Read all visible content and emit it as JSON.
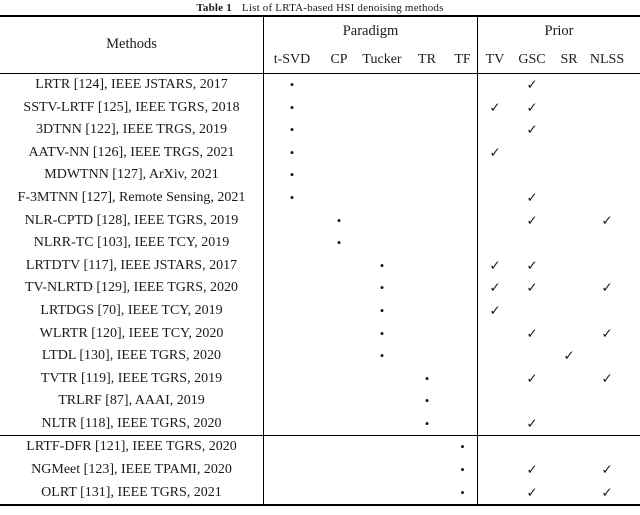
{
  "title": {
    "label": "Table 1",
    "caption": "List of LRTA-based HSI denoising methods"
  },
  "columns": {
    "methods": "Methods",
    "paradigm": {
      "label": "Paradigm",
      "cols": [
        "t-SVD",
        "CP",
        "Tucker",
        "TR",
        "TF"
      ]
    },
    "prior": {
      "label": "Prior",
      "cols": [
        "TV",
        "GSC",
        "SR",
        "NLSS"
      ]
    }
  },
  "symbols": {
    "paradigm_mark": "•",
    "prior_mark": "✓"
  },
  "sections": [
    {
      "rows": [
        {
          "method": "LRTR [124], IEEE JSTARS, 2017",
          "marks": [
            "•",
            "",
            "",
            "",
            "",
            "",
            "✓",
            "",
            ""
          ]
        },
        {
          "method": "SSTV-LRTF [125], IEEE TGRS, 2018",
          "marks": [
            "•",
            "",
            "",
            "",
            "",
            "✓",
            "✓",
            "",
            ""
          ]
        },
        {
          "method": "3DTNN [122], IEEE TRGS, 2019",
          "marks": [
            "•",
            "",
            "",
            "",
            "",
            "",
            "✓",
            "",
            ""
          ]
        },
        {
          "method": "AATV-NN [126], IEEE TRGS, 2021",
          "marks": [
            "•",
            "",
            "",
            "",
            "",
            "✓",
            "",
            "",
            ""
          ]
        },
        {
          "method": "MDWTNN [127], ArXiv, 2021",
          "marks": [
            "•",
            "",
            "",
            "",
            "",
            "",
            "",
            "",
            ""
          ]
        },
        {
          "method": "F-3MTNN [127], Remote Sensing, 2021",
          "marks": [
            "•",
            "",
            "",
            "",
            "",
            "",
            "✓",
            "",
            ""
          ]
        },
        {
          "method": "NLR-CPTD [128], IEEE TGRS, 2019",
          "marks": [
            "",
            "•",
            "",
            "",
            "",
            "",
            "✓",
            "",
            "✓"
          ]
        },
        {
          "method": "NLRR-TC [103], IEEE TCY, 2019",
          "marks": [
            "",
            "•",
            "",
            "",
            "",
            "",
            "",
            "",
            ""
          ]
        },
        {
          "method": "LRTDTV [117], IEEE JSTARS, 2017",
          "marks": [
            "",
            "",
            "•",
            "",
            "",
            "✓",
            "✓",
            "",
            ""
          ]
        },
        {
          "method": "TV-NLRTD [129], IEEE TGRS, 2020",
          "marks": [
            "",
            "",
            "•",
            "",
            "",
            "✓",
            "✓",
            "",
            "✓"
          ]
        },
        {
          "method": "LRTDGS [70], IEEE TCY, 2019",
          "marks": [
            "",
            "",
            "•",
            "",
            "",
            "✓",
            "",
            "",
            ""
          ]
        },
        {
          "method": "WLRTR [120], IEEE TCY, 2020",
          "marks": [
            "",
            "",
            "•",
            "",
            "",
            "",
            "✓",
            "",
            "✓"
          ]
        },
        {
          "method": "LTDL [130], IEEE TGRS, 2020",
          "marks": [
            "",
            "",
            "•",
            "",
            "",
            "",
            "",
            "✓",
            ""
          ]
        },
        {
          "method": "TVTR [119], IEEE TGRS, 2019",
          "marks": [
            "",
            "",
            "",
            "•",
            "",
            "",
            "✓",
            "",
            "✓"
          ]
        },
        {
          "method": "TRLRF [87], AAAI, 2019",
          "marks": [
            "",
            "",
            "",
            "•",
            "",
            "",
            "",
            "",
            ""
          ]
        },
        {
          "method": "NLTR [118], IEEE TGRS, 2020",
          "marks": [
            "",
            "",
            "",
            "•",
            "",
            "",
            "✓",
            "",
            ""
          ]
        }
      ]
    },
    {
      "rows": [
        {
          "method": "LRTF-DFR [121], IEEE TGRS, 2020",
          "marks": [
            "",
            "",
            "",
            "",
            "•",
            "",
            "",
            "",
            ""
          ]
        },
        {
          "method": "NGMeet [123], IEEE TPAMI, 2020",
          "marks": [
            "",
            "",
            "",
            "",
            "•",
            "",
            "✓",
            "",
            "✓"
          ]
        },
        {
          "method": "OLRT [131], IEEE TGRS, 2021",
          "marks": [
            "",
            "",
            "",
            "",
            "•",
            "",
            "✓",
            "",
            "✓"
          ]
        }
      ]
    }
  ]
}
